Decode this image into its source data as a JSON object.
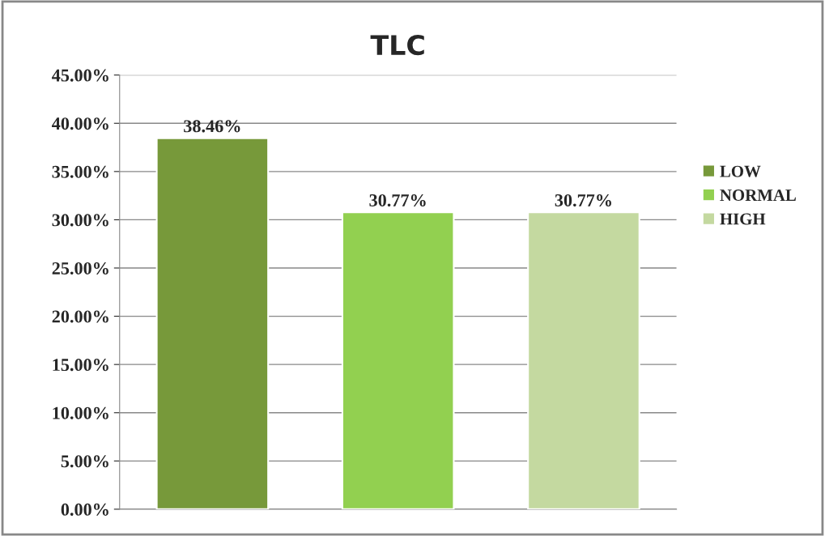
{
  "chart_data": {
    "type": "bar",
    "title": "TLC",
    "categories": [
      null,
      null,
      null
    ],
    "series": [
      {
        "name": "LOW",
        "color": "#77993a",
        "values": [
          38.46,
          null,
          null
        ],
        "value_labels": [
          "38.46%",
          null,
          null
        ]
      },
      {
        "name": "NORMAL",
        "color": "#92d050",
        "values": [
          null,
          30.77,
          null
        ],
        "value_labels": [
          null,
          "30.77%",
          null
        ]
      },
      {
        "name": "HIGH",
        "color": "#c4d9a0",
        "values": [
          null,
          null,
          30.77
        ],
        "value_labels": [
          null,
          null,
          "30.77%"
        ]
      }
    ],
    "ylim": [
      0,
      45
    ],
    "yticks": [
      {
        "value": 0,
        "label": "0.00%"
      },
      {
        "value": 5,
        "label": "5.00%"
      },
      {
        "value": 10,
        "label": "10.00%"
      },
      {
        "value": 15,
        "label": "15.00%"
      },
      {
        "value": 20,
        "label": "20.00%"
      },
      {
        "value": 25,
        "label": "25.00%"
      },
      {
        "value": 30,
        "label": "30.00%"
      },
      {
        "value": 35,
        "label": "35.00%"
      },
      {
        "value": 40,
        "label": "40.00%"
      },
      {
        "value": 45,
        "label": "45.00%"
      }
    ],
    "grid": "y",
    "legend": "right"
  }
}
